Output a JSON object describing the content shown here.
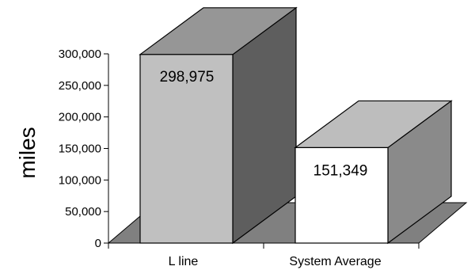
{
  "chart_data": {
    "type": "bar",
    "categories": [
      "L line",
      "System Average"
    ],
    "values": [
      298975,
      151349
    ],
    "data_labels": [
      "298,975",
      "151,349"
    ],
    "ylabel": "miles",
    "ylim": [
      0,
      300000
    ],
    "yticks": [
      0,
      50000,
      100000,
      150000,
      200000,
      250000,
      300000
    ],
    "ytick_labels": [
      "0",
      "50,000",
      "100,000",
      "150,000",
      "200,000",
      "250,000",
      "300,000"
    ],
    "grid": false,
    "legend": "none",
    "style": "3d-column",
    "colors": {
      "bar_fronts": [
        "#c0c0c0",
        "#ffffff"
      ],
      "bar_tops": [
        "#969696",
        "#bdbdbd"
      ],
      "bar_sides": [
        "#5e5e5e",
        "#8a8a8a"
      ],
      "floor": "#808080",
      "stroke": "#000000"
    }
  }
}
